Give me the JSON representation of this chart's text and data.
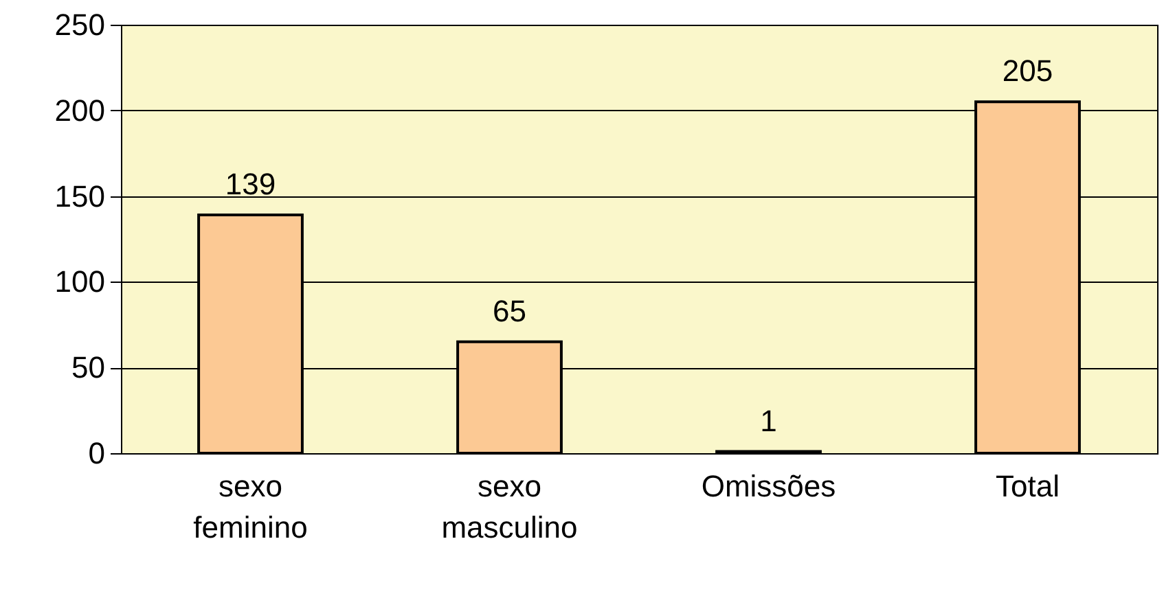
{
  "chart_data": {
    "type": "bar",
    "categories": [
      "sexo feminino",
      "sexo masculino",
      "Omissões",
      "Total"
    ],
    "values": [
      139,
      65,
      1,
      205
    ],
    "color": "#fcc994",
    "ylim": [
      0,
      250
    ],
    "yticks": [
      0,
      50,
      100,
      150,
      200,
      250
    ],
    "grid": "y",
    "data_labels": true
  }
}
